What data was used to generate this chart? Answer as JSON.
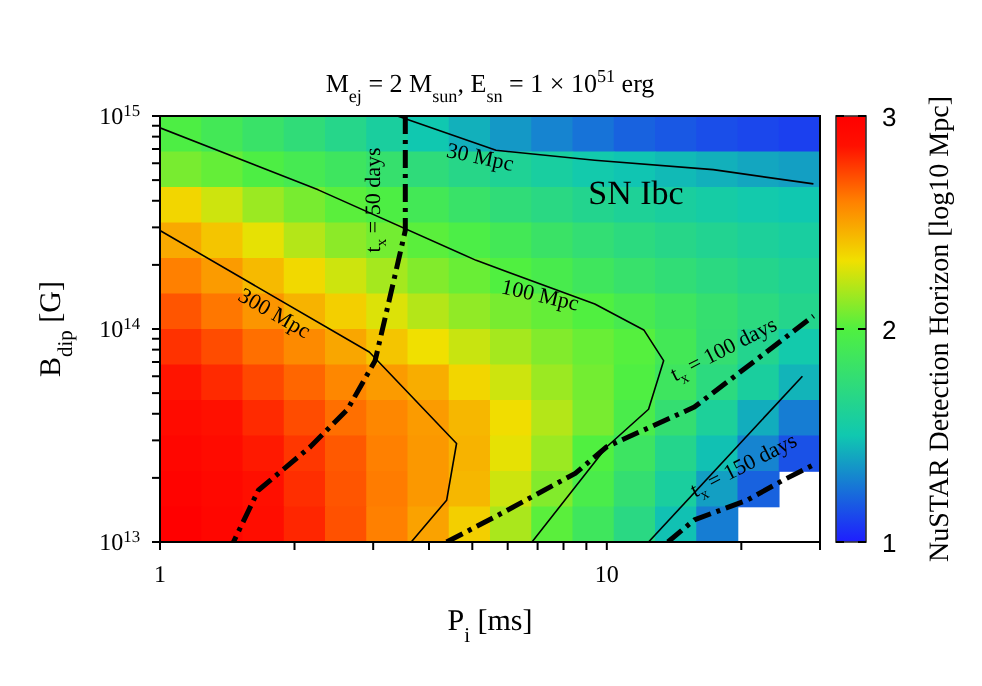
{
  "chart_data": {
    "type": "heatmap",
    "title": "M$_{ej}$ = 2 M$_{sun}$, E$_{sn}$ = 1 × 10$^{51}$ erg",
    "xlabel": "P$_{i}$ [ms]",
    "ylabel": "B$_{dip}$ [G]",
    "clabel": "NuSTAR Detection Horizon [log10 Mpc]",
    "log": "xy",
    "xlim": [
      1,
      30
    ],
    "xticks": [
      1,
      {
        "value": 2,
        "label": null
      },
      {
        "value": 3,
        "label": null
      },
      {
        "value": 4,
        "label": null
      },
      {
        "value": 5,
        "label": null
      },
      {
        "value": 6,
        "label": null
      },
      {
        "value": 7,
        "label": null
      },
      {
        "value": 8,
        "label": null
      },
      {
        "value": 9,
        "label": null
      },
      10,
      {
        "value": 20,
        "label": null
      },
      {
        "value": 30,
        "label": null
      }
    ],
    "ylim": [
      10000000000000.0,
      1000000000000000.0
    ],
    "yticks": [
      {
        "value": 10000000000000.0,
        "label": "10$^{13}$"
      },
      {
        "value": 20000000000000.0,
        "label": null
      },
      {
        "value": 30000000000000.0,
        "label": null
      },
      {
        "value": 40000000000000.0,
        "label": null
      },
      {
        "value": 50000000000000.0,
        "label": null
      },
      {
        "value": 60000000000000.0,
        "label": null
      },
      {
        "value": 70000000000000.0,
        "label": null
      },
      {
        "value": 80000000000000.0,
        "label": null
      },
      {
        "value": 90000000000000.0,
        "label": null
      },
      {
        "value": 100000000000000.0,
        "label": "10$^{14}$"
      },
      {
        "value": 200000000000000.0,
        "label": null
      },
      {
        "value": 300000000000000.0,
        "label": null
      },
      {
        "value": 400000000000000.0,
        "label": null
      },
      {
        "value": 500000000000000.0,
        "label": null
      },
      {
        "value": 600000000000000.0,
        "label": null
      },
      {
        "value": 700000000000000.0,
        "label": null
      },
      {
        "value": 800000000000000.0,
        "label": null
      },
      {
        "value": 900000000000000.0,
        "label": null
      },
      {
        "value": 1000000000000000.0,
        "label": "10$^{15}$"
      }
    ],
    "clim": [
      1,
      3
    ],
    "cticks": [
      1,
      2,
      3
    ],
    "cells": [
      [
        1.98,
        1.9,
        1.82,
        1.75,
        1.67,
        1.58,
        1.5,
        1.43,
        1.36,
        1.3,
        1.25,
        1.2,
        1.17,
        1.14,
        1.12,
        1.1
      ],
      [
        2.08,
        2.04,
        1.98,
        1.92,
        1.86,
        1.8,
        1.74,
        1.68,
        1.62,
        1.57,
        1.52,
        1.49,
        1.46,
        1.43,
        1.4,
        1.38
      ],
      [
        2.35,
        2.25,
        2.15,
        2.08,
        2.02,
        1.98,
        1.9,
        1.82,
        1.75,
        1.7,
        1.65,
        1.61,
        1.58,
        1.55,
        1.52,
        1.5
      ],
      [
        2.48,
        2.4,
        2.3,
        2.2,
        2.12,
        2.07,
        2.02,
        1.97,
        1.9,
        1.83,
        1.77,
        1.72,
        1.68,
        1.64,
        1.6,
        1.57
      ],
      [
        2.6,
        2.52,
        2.43,
        2.34,
        2.25,
        2.17,
        2.1,
        2.05,
        2.0,
        1.94,
        1.87,
        1.81,
        1.76,
        1.71,
        1.66,
        1.62
      ],
      [
        2.7,
        2.62,
        2.54,
        2.45,
        2.37,
        2.28,
        2.2,
        2.13,
        2.08,
        2.04,
        2.0,
        1.93,
        1.86,
        1.79,
        1.72,
        1.66
      ],
      [
        2.78,
        2.72,
        2.64,
        2.57,
        2.49,
        2.4,
        2.32,
        2.24,
        2.17,
        2.1,
        2.05,
        2.01,
        1.9,
        1.78,
        1.65,
        1.52
      ],
      [
        2.85,
        2.8,
        2.73,
        2.66,
        2.58,
        2.52,
        2.47,
        2.35,
        2.25,
        2.15,
        2.07,
        1.99,
        1.86,
        1.72,
        1.58,
        1.44
      ],
      [
        2.9,
        2.86,
        2.8,
        2.72,
        2.64,
        2.58,
        2.52,
        2.44,
        2.33,
        2.2,
        2.08,
        1.95,
        1.78,
        1.6,
        1.42,
        1.28
      ],
      [
        2.95,
        2.9,
        2.84,
        2.77,
        2.69,
        2.6,
        2.53,
        2.45,
        2.3,
        2.15,
        2.0,
        1.85,
        1.66,
        1.48,
        1.3,
        1.15
      ],
      [
        2.97,
        2.93,
        2.87,
        2.79,
        2.7,
        2.61,
        2.53,
        2.44,
        2.25,
        2.1,
        1.95,
        1.78,
        1.58,
        1.38,
        1.2,
        null
      ],
      [
        3.0,
        2.95,
        2.89,
        2.81,
        2.71,
        2.6,
        2.5,
        2.37,
        2.18,
        2.02,
        1.87,
        1.7,
        1.48,
        1.28,
        null,
        null
      ]
    ],
    "series": [
      {
        "type": "line",
        "color": "#000000",
        "line_style": "solid",
        "x": [
          1,
          2.94,
          4.61,
          4.38,
          3.65
        ],
        "values": [
          290000000000000.0,
          78000000000000.0,
          29000000000000.0,
          15700000000000.0,
          10000000000000.0
        ]
      },
      {
        "type": "line",
        "color": "#000000",
        "line_style": "solid",
        "x": [
          1,
          2.26,
          5.1,
          9.4,
          12.1,
          13.4,
          12.4,
          10,
          6.8
        ],
        "values": [
          880000000000000.0,
          450000000000000.0,
          210000000000000.0,
          131000000000000.0,
          99000000000000.0,
          71000000000000.0,
          42000000000000.0,
          28000000000000.0,
          10000000000000.0
        ]
      },
      {
        "type": "line",
        "color": "#000000",
        "line_style": "solid",
        "x": [
          3.4,
          5.65,
          9.4,
          17.3,
          29
        ],
        "values": [
          1000000000000000.0,
          690000000000000.0,
          620000000000000.0,
          560000000000000.0,
          480000000000000.0
        ]
      },
      {
        "type": "line",
        "color": "#000000",
        "line_style": "solid",
        "x": [
          12.4,
          27.4
        ],
        "values": [
          10000000000000.0,
          60000000000000.0
        ]
      },
      {
        "type": "line",
        "color": "#000000",
        "line_style": "dashed",
        "x": [
          3.54,
          3.54,
          3.26,
          3.03,
          2.63,
          2.17,
          1.66,
          1.46
        ],
        "values": [
          1000000000000000.0,
          290000000000000.0,
          137000000000000.0,
          71000000000000.0,
          42000000000000.0,
          28000000000000.0,
          17500000000000.0,
          10000000000000.0
        ]
      },
      {
        "type": "line",
        "color": "#000000",
        "line_style": "dashed",
        "x": [
          4.38,
          5.65,
          8.5,
          10,
          15.7,
          29
        ],
        "values": [
          10000000000000.0,
          13200000000000.0,
          21000000000000.0,
          28000000000000.0,
          43000000000000.0,
          115000000000000.0
        ]
      },
      {
        "type": "line",
        "color": "#000000",
        "line_style": "dashed",
        "x": [
          13.7,
          15.7,
          20.6,
          24.8,
          29
        ],
        "values": [
          10000000000000.0,
          12700000000000.0,
          15700000000000.0,
          19500000000000.0,
          23000000000000.0
        ]
      }
    ],
    "annotations": [
      "300 Mpc",
      "100 Mpc",
      "30 Mpc",
      "SN Ibc",
      "t$_{x}$ = 50 days",
      "t$_{x}$ = 100 days",
      "t$_{x}$ = 150 days"
    ]
  }
}
